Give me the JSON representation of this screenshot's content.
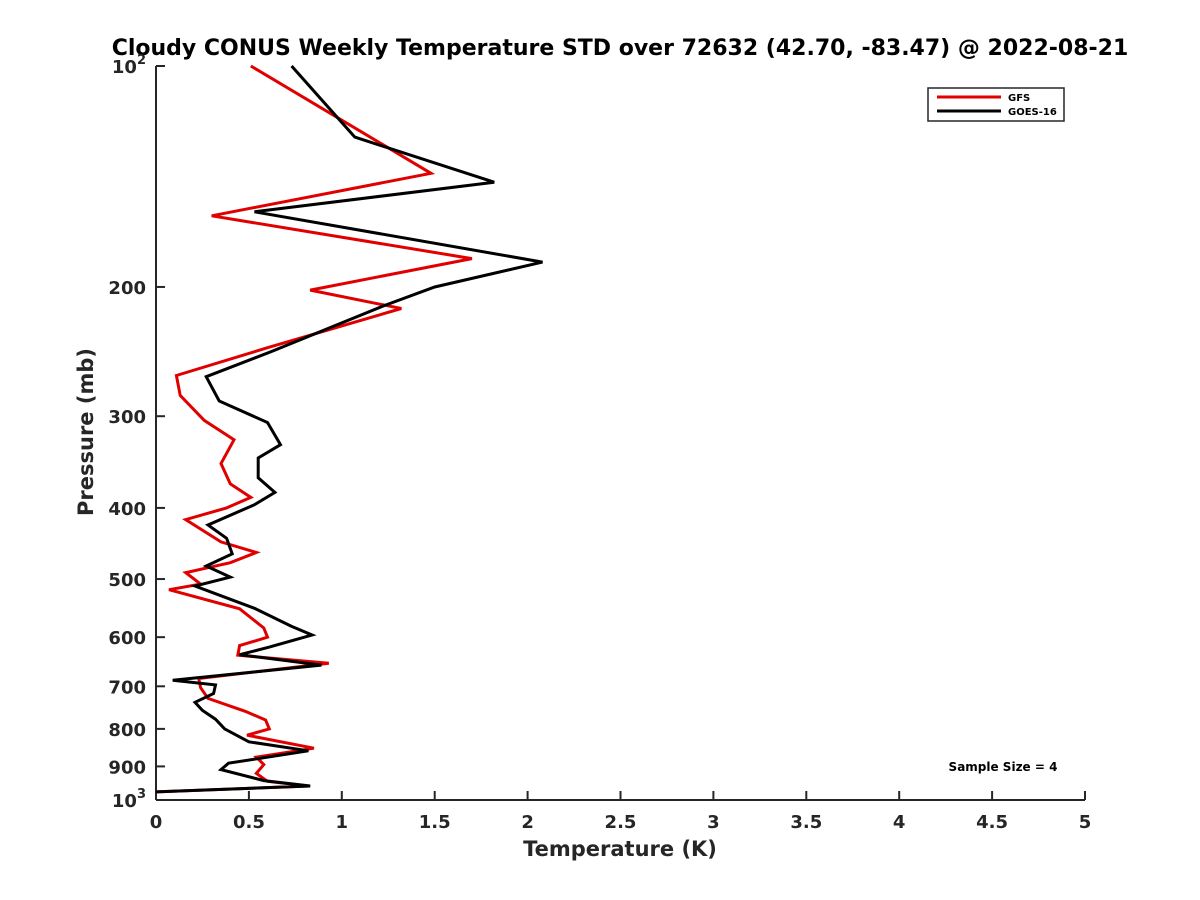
{
  "chart_data": {
    "type": "line",
    "title": "Cloudy CONUS Weekly Temperature STD over 72632 (42.70, -83.47) @ 2022-08-21",
    "xlabel": "Temperature (K)",
    "ylabel": "Pressure (mb)",
    "xlim": [
      0,
      5
    ],
    "ylim": [
      100,
      1000
    ],
    "y_scale": "log",
    "y_reversed": true,
    "grid": false,
    "legend_position": "top-right",
    "x_ticks": [
      "0",
      "0.5",
      "1",
      "1.5",
      "2",
      "2.5",
      "3",
      "3.5",
      "4",
      "4.5",
      "5"
    ],
    "y_ticks": [
      {
        "value": 100,
        "label": "10",
        "sup": "2"
      },
      {
        "value": 200,
        "label": "200",
        "sup": ""
      },
      {
        "value": 300,
        "label": "300",
        "sup": ""
      },
      {
        "value": 400,
        "label": "400",
        "sup": ""
      },
      {
        "value": 500,
        "label": "500",
        "sup": ""
      },
      {
        "value": 600,
        "label": "600",
        "sup": ""
      },
      {
        "value": 700,
        "label": "700",
        "sup": ""
      },
      {
        "value": 800,
        "label": "800",
        "sup": ""
      },
      {
        "value": 900,
        "label": "900",
        "sup": ""
      },
      {
        "value": 1000,
        "label": "10",
        "sup": "3"
      }
    ],
    "series": [
      {
        "name": "GFS",
        "color": "#e00000",
        "points": [
          [
            0.51,
            100
          ],
          [
            1.48,
            140
          ],
          [
            0.3,
            160
          ],
          [
            1.7,
            183
          ],
          [
            0.83,
            202
          ],
          [
            1.32,
            214
          ],
          [
            0.6,
            242
          ],
          [
            0.11,
            264
          ],
          [
            0.13,
            281
          ],
          [
            0.26,
            304
          ],
          [
            0.42,
            323
          ],
          [
            0.35,
            348
          ],
          [
            0.4,
            371
          ],
          [
            0.51,
            387
          ],
          [
            0.38,
            400
          ],
          [
            0.16,
            415
          ],
          [
            0.35,
            445
          ],
          [
            0.54,
            460
          ],
          [
            0.4,
            475
          ],
          [
            0.16,
            490
          ],
          [
            0.24,
            508
          ],
          [
            0.07,
            517
          ],
          [
            0.45,
            549
          ],
          [
            0.58,
            583
          ],
          [
            0.6,
            600
          ],
          [
            0.45,
            616
          ],
          [
            0.44,
            635
          ],
          [
            0.93,
            651
          ],
          [
            0.23,
            683
          ],
          [
            0.24,
            703
          ],
          [
            0.28,
            727
          ],
          [
            0.48,
            757
          ],
          [
            0.59,
            778
          ],
          [
            0.61,
            800
          ],
          [
            0.49,
            816
          ],
          [
            0.85,
            850
          ],
          [
            0.54,
            874
          ],
          [
            0.58,
            895
          ],
          [
            0.54,
            920
          ],
          [
            0.6,
            943
          ],
          [
            0.82,
            957
          ],
          [
            0.0,
            975
          ]
        ]
      },
      {
        "name": "GOES-16",
        "color": "#000000",
        "points": [
          [
            0.73,
            100
          ],
          [
            1.07,
            125
          ],
          [
            1.82,
            144
          ],
          [
            0.53,
            158
          ],
          [
            2.08,
            185
          ],
          [
            1.5,
            200
          ],
          [
            1.23,
            212
          ],
          [
            0.62,
            245
          ],
          [
            0.27,
            265
          ],
          [
            0.34,
            286
          ],
          [
            0.6,
            306
          ],
          [
            0.67,
            328
          ],
          [
            0.55,
            342
          ],
          [
            0.55,
            364
          ],
          [
            0.64,
            381
          ],
          [
            0.53,
            396
          ],
          [
            0.28,
            422
          ],
          [
            0.38,
            440
          ],
          [
            0.41,
            462
          ],
          [
            0.27,
            480
          ],
          [
            0.4,
            497
          ],
          [
            0.21,
            511
          ],
          [
            0.53,
            548
          ],
          [
            0.73,
            580
          ],
          [
            0.84,
            596
          ],
          [
            0.61,
            619
          ],
          [
            0.45,
            634
          ],
          [
            0.89,
            655
          ],
          [
            0.09,
            687
          ],
          [
            0.32,
            697
          ],
          [
            0.31,
            716
          ],
          [
            0.21,
            736
          ],
          [
            0.25,
            755
          ],
          [
            0.32,
            776
          ],
          [
            0.37,
            800
          ],
          [
            0.5,
            833
          ],
          [
            0.82,
            857
          ],
          [
            0.39,
            891
          ],
          [
            0.35,
            909
          ],
          [
            0.58,
            941
          ],
          [
            0.83,
            957
          ],
          [
            0.0,
            975
          ]
        ]
      }
    ],
    "annotation": "Sample Size = 4"
  }
}
